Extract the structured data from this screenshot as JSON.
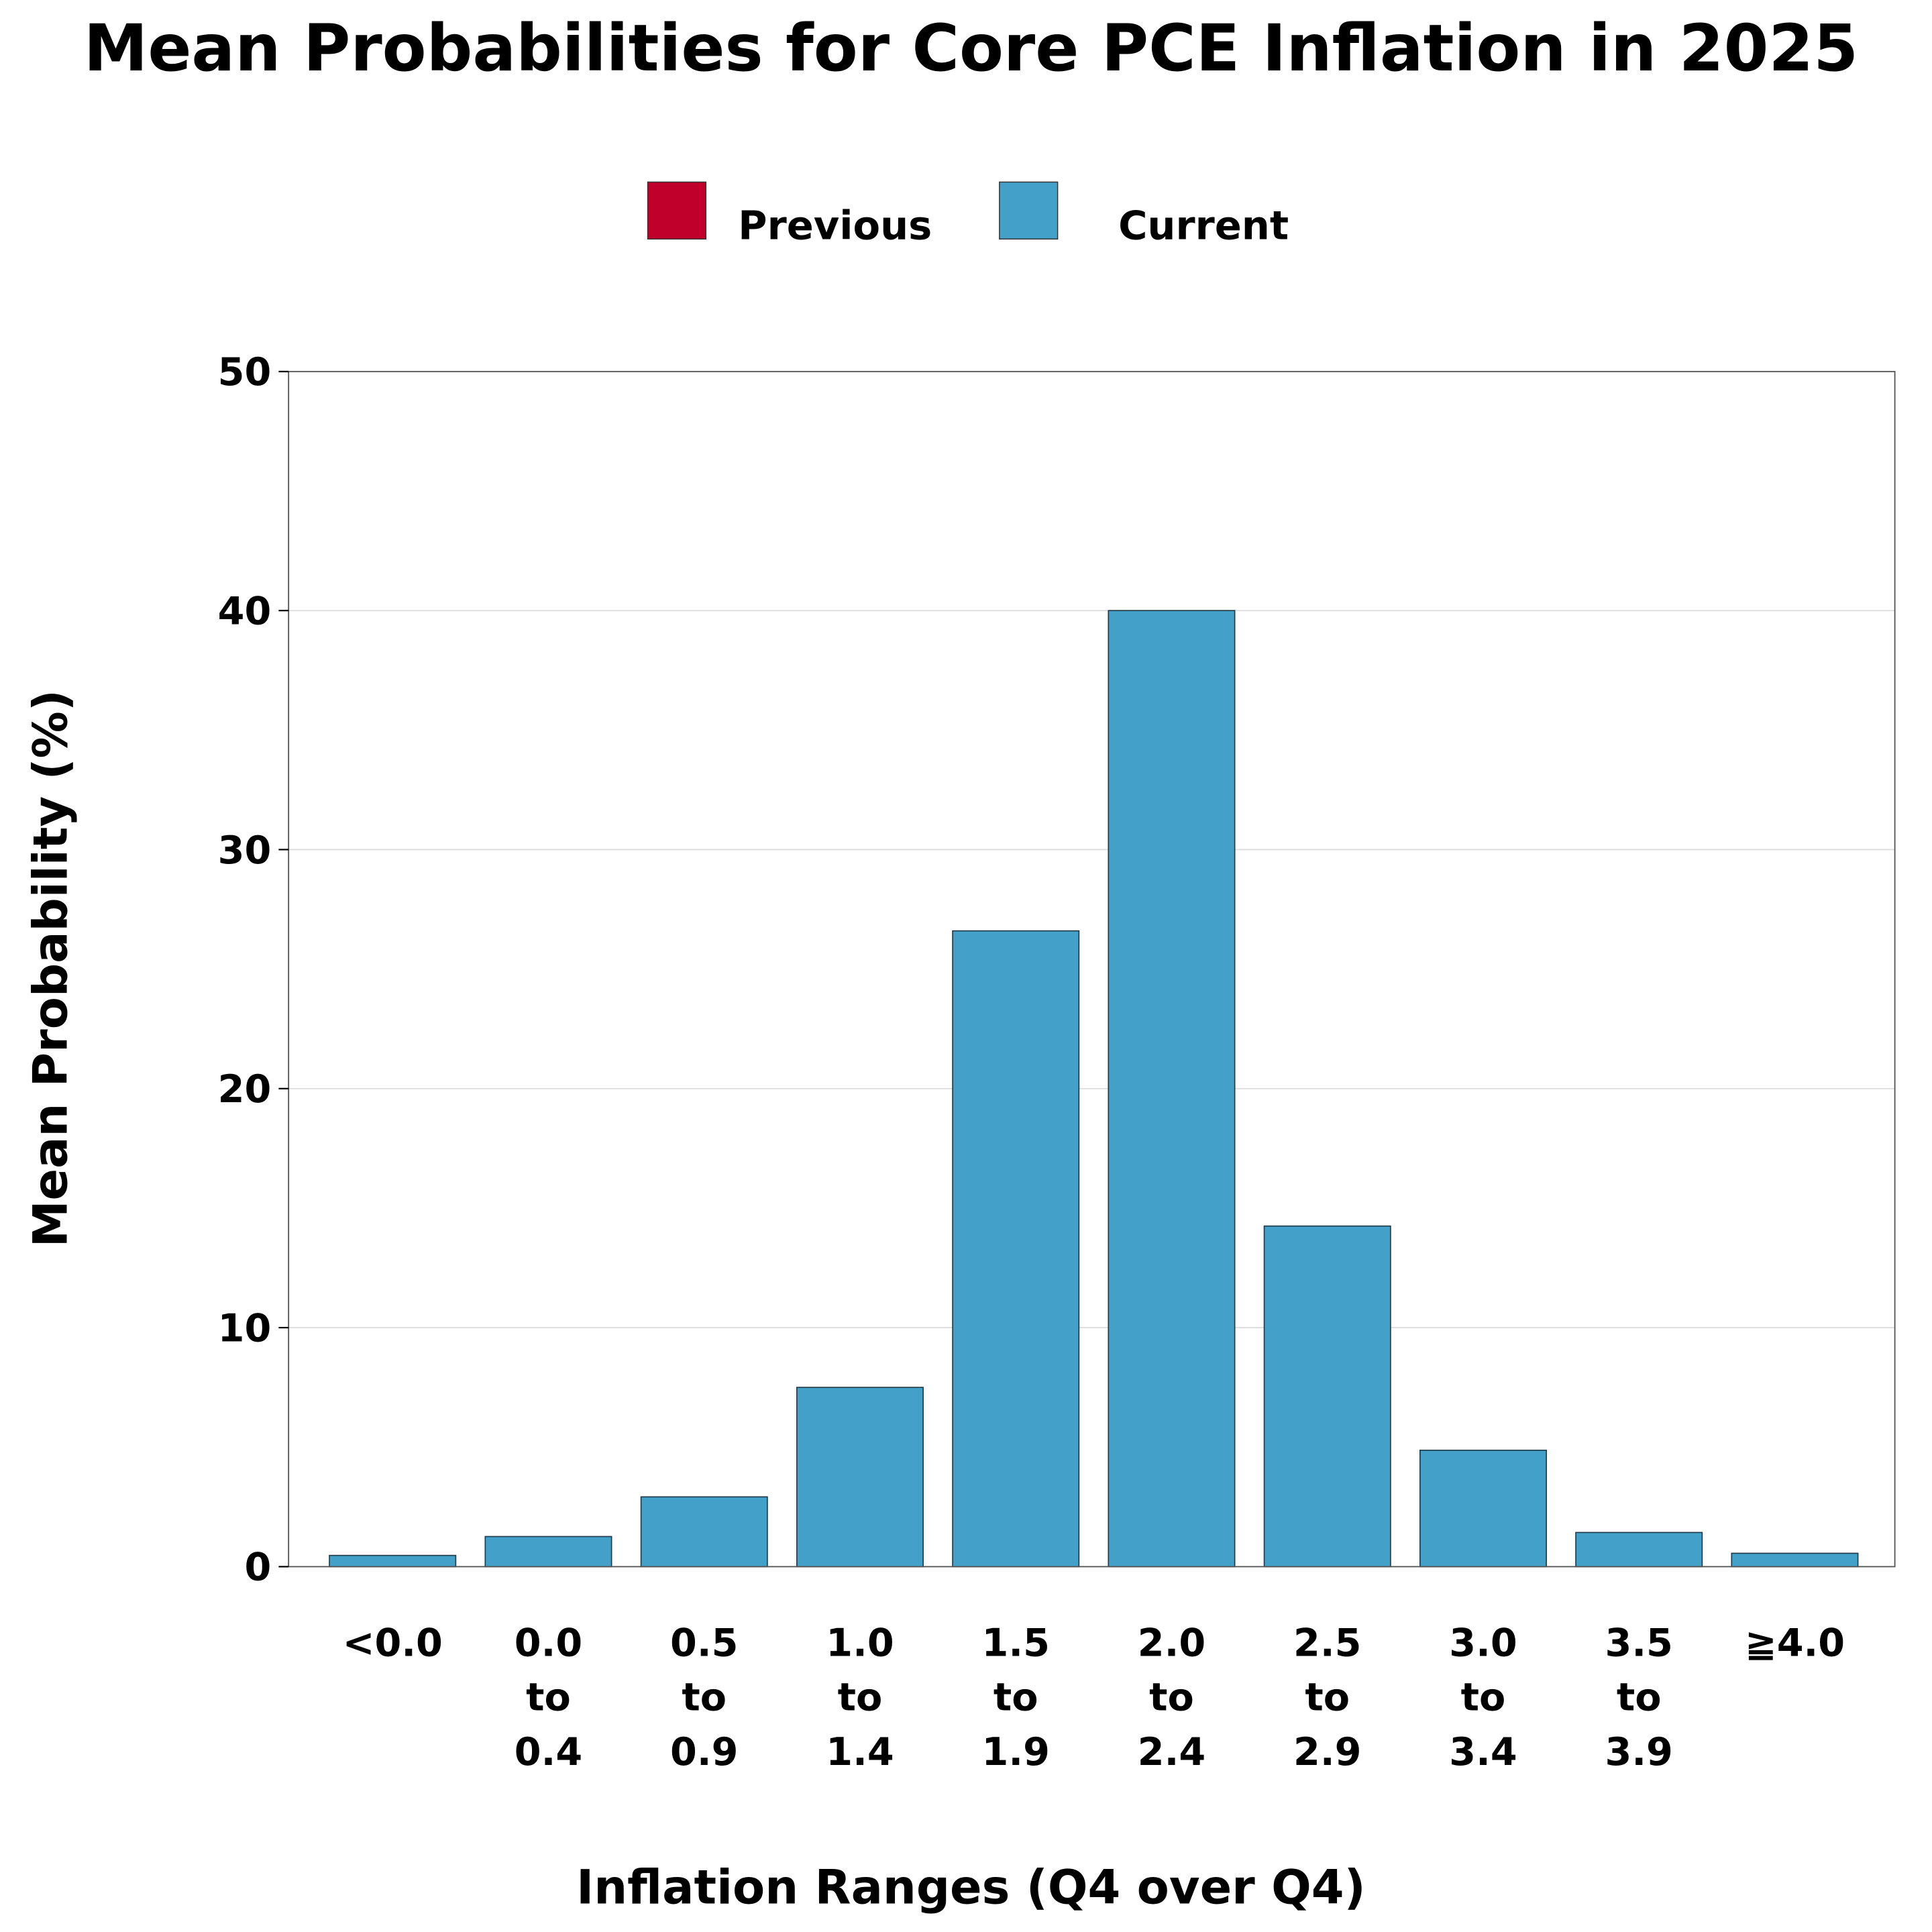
{
  "chart_data": {
    "type": "bar",
    "title": "Mean Probabilities for Core PCE Inflation in 2025",
    "xlabel": "Inflation Ranges (Q4 over Q4)",
    "ylabel": "Mean Probability (%)",
    "ylim": [
      0,
      50
    ],
    "yticks": [
      "0",
      "10",
      "20",
      "30",
      "40",
      "50"
    ],
    "grid": "horizontal",
    "legend_placement": "top-center",
    "categories": [
      [
        "<0.0"
      ],
      [
        "0.0",
        "to",
        "0.4"
      ],
      [
        "0.5",
        "to",
        "0.9"
      ],
      [
        "1.0",
        "to",
        "1.4"
      ],
      [
        "1.5",
        "to",
        "1.9"
      ],
      [
        "2.0",
        "to",
        "2.4"
      ],
      [
        "2.5",
        "to",
        "2.9"
      ],
      [
        "3.0",
        "to",
        "3.4"
      ],
      [
        "3.5",
        "to",
        "3.9"
      ],
      [
        "≧4.0"
      ]
    ],
    "legend": [
      {
        "name": "Previous",
        "color": "#C0002A"
      },
      {
        "name": "Current",
        "color": "#43A1C9"
      }
    ],
    "series": [
      {
        "name": "Current",
        "color": "#43A1C9",
        "values": [
          0.47,
          1.26,
          2.92,
          7.5,
          26.6,
          40.0,
          14.25,
          4.87,
          1.43,
          0.56
        ]
      }
    ]
  }
}
